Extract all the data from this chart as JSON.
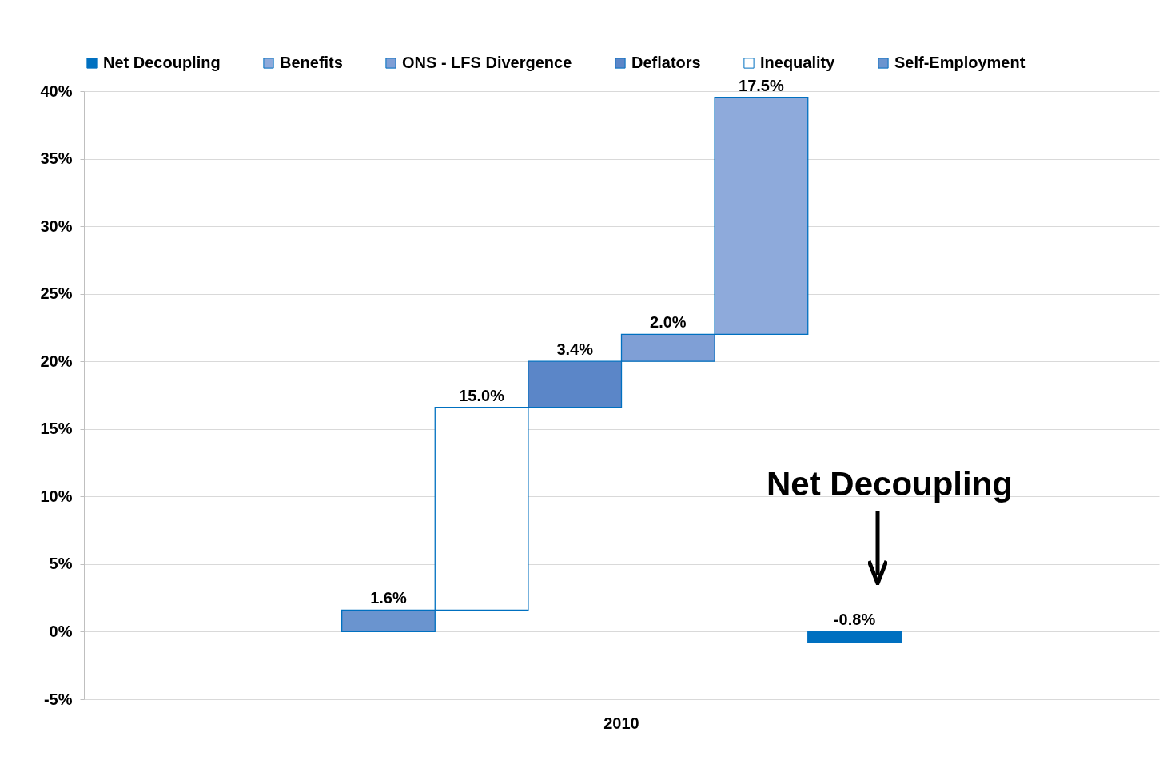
{
  "chart_data": {
    "type": "bar",
    "categories": [
      "2010"
    ],
    "series": [
      {
        "name": "Net Decoupling",
        "color": "#0070c0",
        "values": [
          -0.8
        ],
        "base": [
          0
        ],
        "value_labels": [
          "-0.8%"
        ]
      },
      {
        "name": "Benefits",
        "color": "#8eaadb",
        "values": [
          17.5
        ],
        "base": [
          22.0
        ],
        "value_labels": [
          "17.5%"
        ]
      },
      {
        "name": "ONS - LFS Divergence",
        "color": "#7f9fd6",
        "values": [
          2.0
        ],
        "base": [
          20.0
        ],
        "value_labels": [
          "2.0%"
        ]
      },
      {
        "name": "Deflators",
        "color": "#5b86c8",
        "values": [
          3.4
        ],
        "base": [
          16.6
        ],
        "value_labels": [
          "3.4%"
        ]
      },
      {
        "name": "Inequality",
        "color": "#ffffff",
        "values": [
          15.0
        ],
        "base": [
          1.6
        ],
        "value_labels": [
          "15.0%"
        ]
      },
      {
        "name": "Self-Employment",
        "color": "#6a94cf",
        "values": [
          1.6
        ],
        "base": [
          0
        ],
        "value_labels": [
          "1.6%"
        ]
      }
    ],
    "ylim": [
      -5,
      40
    ],
    "yticks": [
      {
        "value": -5,
        "label": "-5%"
      },
      {
        "value": 0,
        "label": "0%"
      },
      {
        "value": 5,
        "label": "5%"
      },
      {
        "value": 10,
        "label": "10%"
      },
      {
        "value": 15,
        "label": "15%"
      },
      {
        "value": 20,
        "label": "20%"
      },
      {
        "value": 25,
        "label": "25%"
      },
      {
        "value": 30,
        "label": "30%"
      },
      {
        "value": 35,
        "label": "35%"
      },
      {
        "value": 40,
        "label": "40%"
      }
    ],
    "grid": "y",
    "legend": "top",
    "annotations": [
      "Net Decoupling"
    ]
  }
}
